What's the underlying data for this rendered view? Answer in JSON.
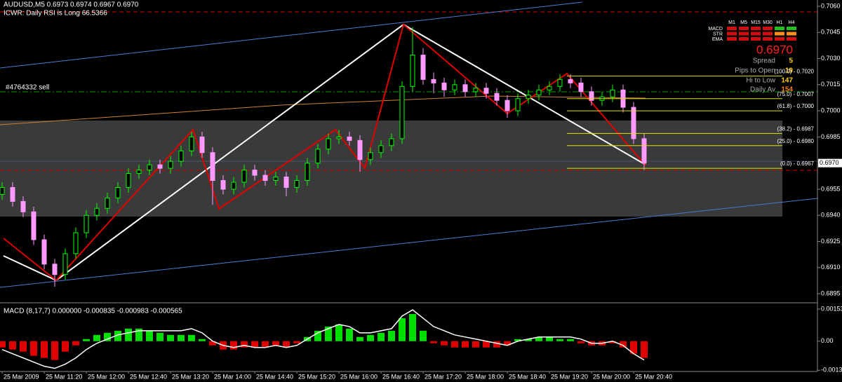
{
  "chart_data": [
    {
      "type": "candlestick",
      "title": "AUDUSD,M5  0.6973 0.6974 0.6967 0.6970",
      "subtitle": "ICWR: Daily RSI is Long 66.5366",
      "annotations": [
        "#4764332 sell"
      ],
      "x": [
        0,
        10,
        20,
        30,
        40,
        50,
        60,
        70,
        80,
        90,
        100,
        110,
        120,
        130,
        140,
        150,
        160,
        170,
        180,
        190,
        200,
        210,
        220,
        230,
        240,
        250,
        260,
        270,
        280,
        290,
        300,
        310,
        320,
        330,
        340,
        350,
        360,
        370,
        380,
        390,
        400,
        410,
        420,
        430,
        440,
        450,
        460,
        470,
        480,
        490,
        500,
        510,
        520,
        530,
        540,
        550,
        560,
        570,
        580,
        590,
        600,
        610
      ],
      "open": [
        0.6952,
        0.6956,
        0.6948,
        0.6942,
        0.6926,
        0.6912,
        0.6906,
        0.6918,
        0.693,
        0.694,
        0.6944,
        0.695,
        0.6956,
        0.6964,
        0.6966,
        0.6969,
        0.6967,
        0.6971,
        0.6977,
        0.6985,
        0.6976,
        0.696,
        0.6955,
        0.6959,
        0.6966,
        0.6963,
        0.696,
        0.6962,
        0.6956,
        0.696,
        0.697,
        0.6978,
        0.6984,
        0.6985,
        0.6983,
        0.6972,
        0.6976,
        0.698,
        0.6984,
        0.7014,
        0.7032,
        0.7018,
        0.7016,
        0.7012,
        0.7015,
        0.7011,
        0.7013,
        0.701,
        0.7006,
        0.7,
        0.7007,
        0.7009,
        0.7012,
        0.7014,
        0.7018,
        0.7016,
        0.7011,
        0.7006,
        0.7008,
        0.7012,
        0.7002,
        0.6984
      ],
      "high": [
        0.6959,
        0.6959,
        0.6951,
        0.6945,
        0.6929,
        0.6915,
        0.6921,
        0.6933,
        0.6943,
        0.6947,
        0.6953,
        0.6959,
        0.6967,
        0.6969,
        0.6972,
        0.6972,
        0.6974,
        0.698,
        0.6988,
        0.6988,
        0.6979,
        0.6963,
        0.6962,
        0.6969,
        0.6969,
        0.6966,
        0.6965,
        0.6965,
        0.6963,
        0.6973,
        0.6981,
        0.6987,
        0.6989,
        0.6988,
        0.6986,
        0.6979,
        0.6983,
        0.6987,
        0.7017,
        0.7048,
        0.7036,
        0.7022,
        0.7019,
        0.7018,
        0.7018,
        0.7016,
        0.7016,
        0.7013,
        0.7009,
        0.701,
        0.7012,
        0.7015,
        0.7017,
        0.7021,
        0.7021,
        0.7019,
        0.7014,
        0.7011,
        0.7015,
        0.7015,
        0.7005,
        0.6987
      ],
      "low": [
        0.6949,
        0.6945,
        0.6939,
        0.6923,
        0.6909,
        0.6899,
        0.6903,
        0.6915,
        0.6927,
        0.6937,
        0.6941,
        0.6947,
        0.6953,
        0.6961,
        0.6963,
        0.6964,
        0.6964,
        0.6968,
        0.6974,
        0.6973,
        0.6946,
        0.6952,
        0.6952,
        0.6956,
        0.696,
        0.6957,
        0.6957,
        0.6951,
        0.6953,
        0.6957,
        0.6967,
        0.6975,
        0.6981,
        0.698,
        0.6965,
        0.6969,
        0.6973,
        0.6977,
        0.6981,
        0.7011,
        0.7015,
        0.701,
        0.7008,
        0.7009,
        0.7008,
        0.7008,
        0.7007,
        0.7003,
        0.6996,
        0.6997,
        0.7004,
        0.7006,
        0.7009,
        0.7011,
        0.7013,
        0.7008,
        0.7003,
        0.7003,
        0.7005,
        0.6999,
        0.6981,
        0.6966
      ],
      "close": [
        0.6956,
        0.6948,
        0.6942,
        0.6926,
        0.6912,
        0.6906,
        0.6918,
        0.693,
        0.694,
        0.6944,
        0.695,
        0.6956,
        0.6964,
        0.6966,
        0.6969,
        0.6967,
        0.6971,
        0.6977,
        0.6985,
        0.6976,
        0.696,
        0.6955,
        0.6959,
        0.6966,
        0.6963,
        0.696,
        0.6962,
        0.6956,
        0.696,
        0.697,
        0.6978,
        0.6984,
        0.6985,
        0.6983,
        0.6972,
        0.6976,
        0.698,
        0.6984,
        0.7014,
        0.7032,
        0.7018,
        0.7016,
        0.7012,
        0.7015,
        0.7011,
        0.7013,
        0.701,
        0.7006,
        0.7,
        0.7007,
        0.7009,
        0.7012,
        0.7014,
        0.7018,
        0.7016,
        0.7011,
        0.7006,
        0.7008,
        0.7012,
        0.7002,
        0.6984,
        0.697
      ],
      "up_color": "#00ff00",
      "down_color": "#ff99ff",
      "xlim": [
        -2,
        774.67
      ],
      "xticks": [
        {
          "value": 0,
          "label": "25 Mar 2009"
        },
        {
          "value": 40,
          "label": "25 Mar 11:20"
        },
        {
          "value": 80,
          "label": "25 Mar 12:00"
        },
        {
          "value": 120,
          "label": "25 Mar 12:40"
        },
        {
          "value": 160,
          "label": "25 Mar 13:20"
        },
        {
          "value": 200,
          "label": "25 Mar 14:00"
        },
        {
          "value": 240,
          "label": "25 Mar 14:40"
        },
        {
          "value": 280,
          "label": "25 Mar 15:20"
        },
        {
          "value": 320,
          "label": "25 Mar 16:00"
        },
        {
          "value": 360,
          "label": "25 Mar 16:40"
        },
        {
          "value": 400,
          "label": "25 Mar 17:20"
        },
        {
          "value": 440,
          "label": "25 Mar 18:00"
        },
        {
          "value": 480,
          "label": "25 Mar 18:40"
        },
        {
          "value": 520,
          "label": "25 Mar 19:20"
        },
        {
          "value": 560,
          "label": "25 Mar 20:00"
        },
        {
          "value": 600,
          "label": "25 Mar 20:40"
        }
      ],
      "ylim": [
        0.68906,
        0.7062
      ],
      "yticks": [
        {
          "value": 0.706,
          "label": "0.7060"
        },
        {
          "value": 0.7045,
          "label": "0.7045"
        },
        {
          "value": 0.703,
          "label": "0.7030"
        },
        {
          "value": 0.7015,
          "label": "0.7015"
        },
        {
          "value": 0.7,
          "label": "0.7000"
        },
        {
          "value": 0.6985,
          "label": "0.6985"
        },
        {
          "value": 0.6955,
          "label": "0.6955"
        },
        {
          "value": 0.694,
          "label": "0.6940"
        },
        {
          "value": 0.6925,
          "label": "0.6925"
        },
        {
          "value": 0.691,
          "label": "0.6910"
        },
        {
          "value": 0.6895,
          "label": "0.6895"
        }
      ],
      "last_price": {
        "value": 0.697,
        "label": "0.6970"
      },
      "fib_levels": [
        {
          "value": 0.702,
          "label": "(100.0) - 0.7020"
        },
        {
          "value": 0.7007,
          "label": "(75.0) - 0.7007"
        },
        {
          "value": 0.7,
          "label": "(61.8) - 0.7000"
        },
        {
          "value": 0.6987,
          "label": "(38.2) - 0.6987"
        },
        {
          "value": 0.698,
          "label": "(25.0) - 0.6980"
        },
        {
          "value": 0.6967,
          "label": "(0.0) - 0.6967"
        }
      ],
      "fib_color": "#e0e000"
    },
    {
      "type": "bar",
      "title": "MACD (8,17,7) 0.000000 -0.000835 -0.000983 -0.000565",
      "x": [
        0,
        10,
        20,
        30,
        40,
        50,
        60,
        70,
        80,
        90,
        100,
        110,
        120,
        130,
        140,
        150,
        160,
        170,
        180,
        190,
        200,
        210,
        220,
        230,
        240,
        250,
        260,
        270,
        280,
        290,
        300,
        310,
        320,
        330,
        340,
        350,
        360,
        370,
        380,
        390,
        400,
        410,
        420,
        430,
        440,
        450,
        460,
        470,
        480,
        490,
        500,
        510,
        520,
        530,
        540,
        550,
        560,
        570,
        580,
        590,
        600,
        610
      ],
      "values": [
        -0.0003,
        -0.0004,
        -0.0005,
        -0.0007,
        -0.0008,
        -0.0009,
        -0.0005,
        -0.0002,
        0.0001,
        0.0003,
        0.0004,
        0.0005,
        0.0006,
        0.0006,
        0.0005,
        0.0004,
        0.0003,
        0.0003,
        0.0003,
        0.0001,
        -0.0002,
        -0.0004,
        -0.0004,
        -0.0003,
        -0.0003,
        -0.0003,
        -0.0002,
        -0.0003,
        -0.0001,
        0.0002,
        0.0005,
        0.0007,
        0.0008,
        0.0006,
        0.0002,
        0.0003,
        0.0004,
        0.0005,
        0.0011,
        0.0013,
        0.0005,
        -0.0001,
        -0.0002,
        -0.0003,
        -0.0003,
        -0.0003,
        -0.0003,
        -0.0003,
        -0.0002,
        0.0001,
        0.0001,
        0.0002,
        0.0002,
        0.0001,
        0.0001,
        -0.0001,
        -0.0002,
        -0.0002,
        -0.0001,
        -0.0003,
        -0.0006,
        -0.0008
      ],
      "line": [
        -0.0004,
        -0.0006,
        -0.0008,
        -0.001,
        -0.0012,
        -0.0013,
        -0.0011,
        -0.0008,
        -0.0004,
        -0.0001,
        0.0001,
        0.0003,
        0.0004,
        0.0005,
        0.0005,
        0.0005,
        0.0005,
        0.0005,
        0.0006,
        0.0004,
        0,
        -0.0002,
        -0.0003,
        -0.0002,
        -0.0003,
        -0.0003,
        -0.0002,
        -0.0003,
        -0.0002,
        0.0001,
        0.0004,
        0.0006,
        0.0008,
        0.0007,
        0.0004,
        0.0004,
        0.0005,
        0.0006,
        0.0012,
        0.0015,
        0.0011,
        0.0007,
        0.0005,
        0.0003,
        0.0002,
        0.0001,
        0,
        -0.0001,
        -0.0002,
        0,
        0.0001,
        0.0002,
        0.0002,
        0.0002,
        0.0002,
        0.0001,
        -0.0001,
        -0.0001,
        0,
        -0.0002,
        -0.0006,
        -0.0009
      ],
      "positive_color": "#00e000",
      "negative_color": "#e00000",
      "line_color": "#ffffff",
      "xlim": [
        -2,
        774.67
      ],
      "ylim": [
        -0.00145,
        0.00177
      ],
      "yticks": [
        0.001537,
        {
          "value": 0,
          "label": "0.00"
        },
        -0.001393
      ]
    }
  ],
  "info_panel": {
    "timeframes": [
      "M1",
      "M5",
      "M15",
      "M30",
      "H1",
      "H4"
    ],
    "rows": [
      "MACD",
      "STR",
      "EMA"
    ],
    "price": "0.6970",
    "spread_label": "Spread",
    "spread": "5",
    "pips_label": "Pips to Open",
    "pips": "19",
    "hilo_label": "Hi to Low",
    "hilo": "147",
    "daily_label": "Daily Av",
    "daily": "154"
  }
}
